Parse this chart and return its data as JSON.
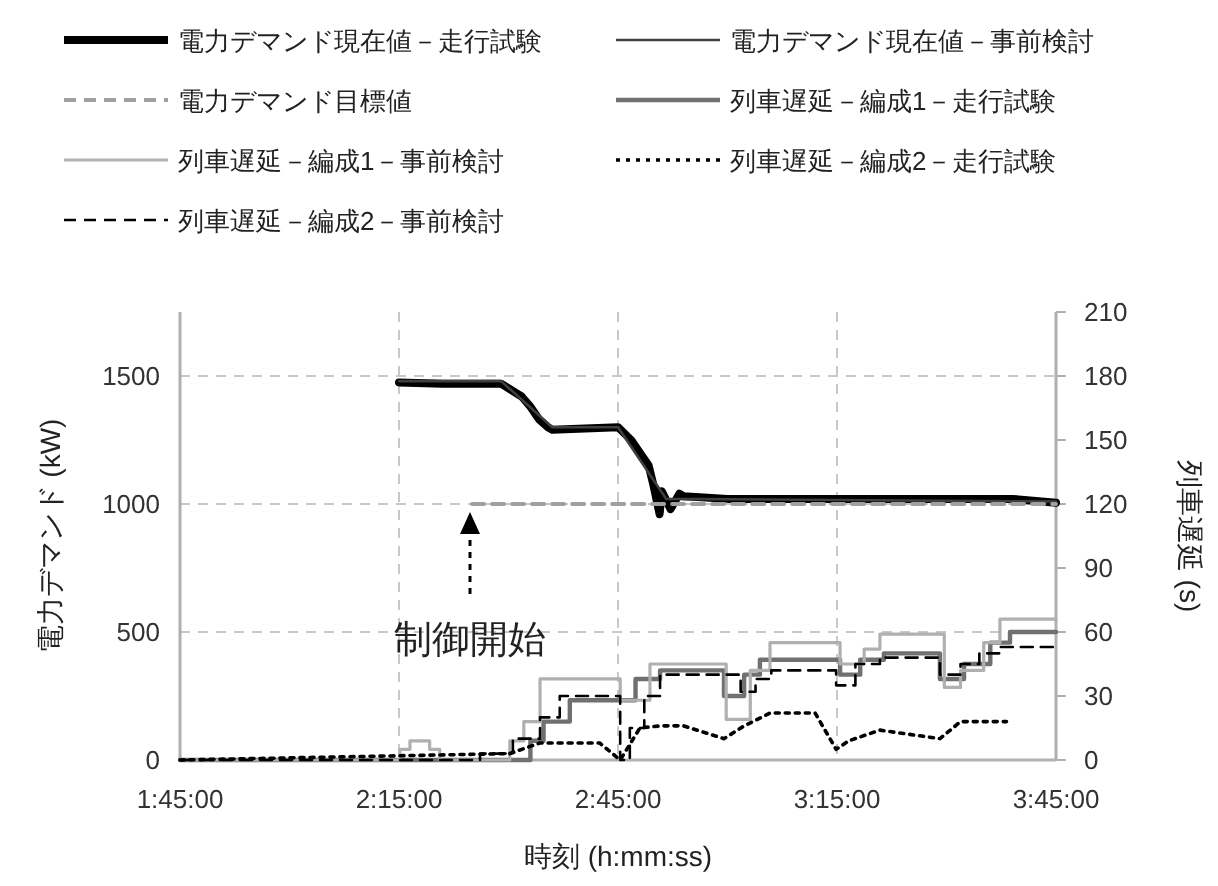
{
  "chart_data": {
    "type": "line",
    "xlabel": "時刻 (h:mm:ss)",
    "ylabel": "電力デマンド (kW)",
    "y2label": "列車遅延 (s)",
    "xlim": [
      1.75,
      3.75
    ],
    "xticks": [
      {
        "value": 1.75,
        "label": "1:45:00"
      },
      {
        "value": 2.25,
        "label": "2:15:00"
      },
      {
        "value": 2.75,
        "label": "2:45:00"
      },
      {
        "value": 3.25,
        "label": "3:15:00"
      },
      {
        "value": 3.75,
        "label": "3:45:00"
      }
    ],
    "ylim": [
      0,
      1750
    ],
    "yticks": [
      0,
      500,
      1000,
      1500
    ],
    "y2lim": [
      0,
      210
    ],
    "y2ticks": [
      0,
      30,
      60,
      90,
      120,
      150,
      180,
      210
    ],
    "grid": true,
    "legend": "top",
    "annotations": [
      "制御開始"
    ],
    "series": [
      {
        "name": "電力デマンド現在値－走行試験",
        "color": "#000000",
        "type": "line",
        "line_style": "solid",
        "x": [
          2.25,
          2.35,
          2.483,
          2.53,
          2.55,
          2.57,
          2.59,
          2.6,
          2.75,
          2.78,
          2.82,
          2.83,
          2.845,
          2.85,
          2.87,
          2.89,
          2.9,
          3.0,
          3.2,
          3.5,
          3.65,
          3.75
        ],
        "values": [
          1475,
          1470,
          1470,
          1420,
          1380,
          1330,
          1300,
          1290,
          1300,
          1250,
          1150,
          1080,
          960,
          1050,
          980,
          1040,
          1030,
          1020,
          1020,
          1020,
          1020,
          1005
        ]
      },
      {
        "name": "電力デマンド現在値－事前検討",
        "color": "#404040",
        "type": "line",
        "line_style": "solid",
        "x": [
          2.25,
          2.483,
          2.6,
          2.75,
          2.86,
          3.75
        ],
        "values": [
          1480,
          1480,
          1300,
          1300,
          1020,
          1010
        ]
      },
      {
        "name": "電力デマンド目標値",
        "color": "#a0a0a0",
        "type": "line",
        "line_style": "dashed",
        "x": [
          2.417,
          3.75
        ],
        "values": [
          1000,
          1000
        ]
      },
      {
        "name": "列車遅延－編成1－走行試験",
        "color": "#707070",
        "type": "step",
        "axis": "y2",
        "line_style": "solid",
        "x": [
          1.75,
          2.55,
          2.58,
          2.64,
          2.79,
          2.846,
          2.992,
          3.038,
          3.074,
          3.257,
          3.303,
          3.357,
          3.485,
          3.54,
          3.6,
          3.645,
          3.75
        ],
        "values": [
          0,
          9,
          18,
          28,
          38,
          42,
          30,
          40,
          47,
          40,
          47,
          50,
          38,
          45,
          55,
          60,
          60
        ]
      },
      {
        "name": "列車遅延－編成1－事前検討",
        "color": "#b0b0b0",
        "type": "step",
        "axis": "y2",
        "line_style": "solid",
        "x": [
          1.75,
          2.252,
          2.275,
          2.32,
          2.343,
          2.503,
          2.535,
          2.572,
          2.755,
          2.823,
          2.997,
          3.052,
          3.097,
          3.257,
          3.312,
          3.348,
          3.495,
          3.532,
          3.585,
          3.622,
          3.75
        ],
        "values": [
          0,
          5,
          9,
          5,
          0,
          9,
          18,
          38,
          28,
          45,
          19,
          42,
          55,
          45,
          52,
          59,
          34,
          42,
          55,
          66,
          66
        ]
      },
      {
        "name": "列車遅延－編成2－走行試験",
        "color": "#000000",
        "type": "line",
        "axis": "y2",
        "line_style": "dotted",
        "x": [
          1.75,
          2.503,
          2.572,
          2.708,
          2.755,
          2.8,
          2.846,
          2.9,
          2.992,
          3.038,
          3.097,
          3.2,
          3.248,
          3.277,
          3.348,
          3.485,
          3.532,
          3.637
        ],
        "values": [
          0,
          3,
          8,
          8,
          0,
          15,
          16,
          16,
          10,
          16,
          22,
          22,
          5,
          9,
          14,
          10,
          18,
          18
        ]
      },
      {
        "name": "列車遅延－編成2－事前検討",
        "color": "#000000",
        "type": "step",
        "axis": "y2",
        "line_style": "dashed",
        "x": [
          1.75,
          2.435,
          2.51,
          2.572,
          2.617,
          2.755,
          2.777,
          2.81,
          2.846,
          3.03,
          3.064,
          3.1,
          3.248,
          3.292,
          3.348,
          3.485,
          3.532,
          3.575,
          3.622,
          3.75
        ],
        "values": [
          0,
          3,
          10,
          20,
          30,
          0,
          15,
          30,
          40,
          32,
          38,
          42,
          35,
          45,
          48,
          40,
          45,
          50,
          53,
          53
        ]
      }
    ]
  }
}
